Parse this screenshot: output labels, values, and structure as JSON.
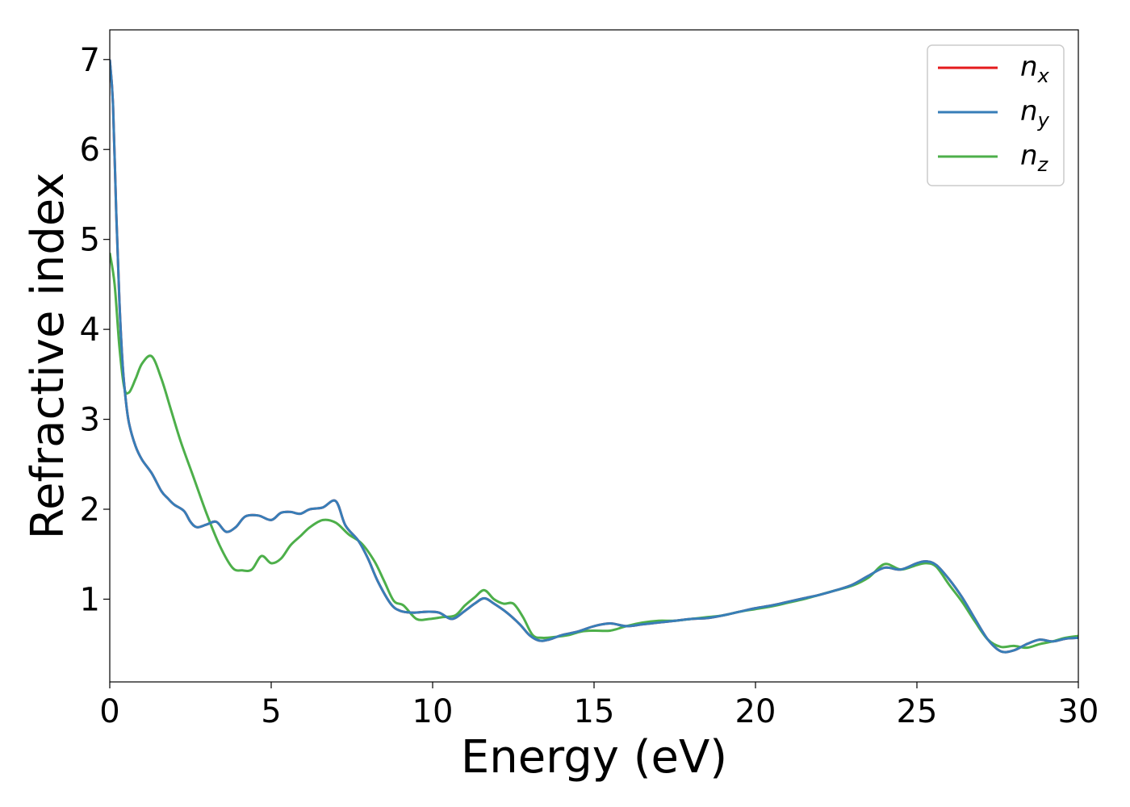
{
  "chart_data": {
    "type": "line",
    "xlabel": "Energy (eV)",
    "ylabel": "Refractive index",
    "xlim": [
      0,
      30
    ],
    "ylim": [
      0.08,
      7.33
    ],
    "xticks": [
      "0",
      "5",
      "10",
      "15",
      "20",
      "25",
      "30"
    ],
    "yticks": [
      "1",
      "2",
      "3",
      "4",
      "5",
      "6",
      "7"
    ],
    "grid": false,
    "legend_position": "top-right",
    "series": [
      {
        "name": "n",
        "subscript": "x",
        "color": "#e41a1c",
        "x": [
          0,
          0.1,
          0.2,
          0.3,
          0.4,
          0.5,
          0.6,
          0.8,
          1.0,
          1.3,
          1.6,
          1.8,
          2.0,
          2.3,
          2.5,
          2.7,
          3.0,
          3.3,
          3.6,
          3.9,
          4.2,
          4.6,
          5.0,
          5.3,
          5.6,
          5.9,
          6.2,
          6.6,
          7.0,
          7.3,
          7.7,
          8.0,
          8.3,
          8.7,
          9.0,
          9.4,
          9.8,
          10.2,
          10.6,
          11.0,
          11.3,
          11.6,
          11.9,
          12.3,
          12.7,
          13.0,
          13.3,
          13.6,
          14.0,
          14.5,
          15.0,
          15.5,
          16.0,
          16.5,
          17.0,
          17.5,
          18.0,
          18.5,
          19.0,
          19.5,
          20.0,
          20.5,
          21.0,
          21.5,
          22.0,
          22.5,
          23.0,
          23.5,
          24.0,
          24.5,
          25.0,
          25.3,
          25.6,
          26.0,
          26.4,
          26.8,
          27.2,
          27.6,
          28.0,
          28.4,
          28.8,
          29.2,
          29.6,
          30.0
        ],
        "y": [
          7.0,
          6.5,
          5.3,
          4.3,
          3.6,
          3.2,
          2.95,
          2.7,
          2.55,
          2.4,
          2.2,
          2.12,
          2.05,
          1.98,
          1.86,
          1.8,
          1.83,
          1.86,
          1.75,
          1.8,
          1.92,
          1.93,
          1.88,
          1.96,
          1.97,
          1.95,
          2.0,
          2.02,
          2.09,
          1.82,
          1.65,
          1.45,
          1.2,
          0.95,
          0.87,
          0.85,
          0.86,
          0.85,
          0.78,
          0.87,
          0.95,
          1.01,
          0.95,
          0.85,
          0.72,
          0.6,
          0.54,
          0.55,
          0.6,
          0.64,
          0.7,
          0.73,
          0.7,
          0.72,
          0.74,
          0.76,
          0.78,
          0.79,
          0.82,
          0.86,
          0.9,
          0.93,
          0.97,
          1.01,
          1.05,
          1.1,
          1.16,
          1.26,
          1.35,
          1.33,
          1.4,
          1.42,
          1.38,
          1.22,
          1.02,
          0.78,
          0.55,
          0.42,
          0.43,
          0.5,
          0.55,
          0.53,
          0.56,
          0.57
        ]
      },
      {
        "name": "n",
        "subscript": "y",
        "color": "#377eb8",
        "x": [
          0,
          0.1,
          0.2,
          0.3,
          0.4,
          0.5,
          0.6,
          0.8,
          1.0,
          1.3,
          1.6,
          1.8,
          2.0,
          2.3,
          2.5,
          2.7,
          3.0,
          3.3,
          3.6,
          3.9,
          4.2,
          4.6,
          5.0,
          5.3,
          5.6,
          5.9,
          6.2,
          6.6,
          7.0,
          7.3,
          7.7,
          8.0,
          8.3,
          8.7,
          9.0,
          9.4,
          9.8,
          10.2,
          10.6,
          11.0,
          11.3,
          11.6,
          11.9,
          12.3,
          12.7,
          13.0,
          13.3,
          13.6,
          14.0,
          14.5,
          15.0,
          15.5,
          16.0,
          16.5,
          17.0,
          17.5,
          18.0,
          18.5,
          19.0,
          19.5,
          20.0,
          20.5,
          21.0,
          21.5,
          22.0,
          22.5,
          23.0,
          23.5,
          24.0,
          24.5,
          25.0,
          25.3,
          25.6,
          26.0,
          26.4,
          26.8,
          27.2,
          27.6,
          28.0,
          28.4,
          28.8,
          29.2,
          29.6,
          30.0
        ],
        "y": [
          7.0,
          6.5,
          5.3,
          4.3,
          3.6,
          3.2,
          2.95,
          2.7,
          2.55,
          2.4,
          2.2,
          2.12,
          2.05,
          1.98,
          1.86,
          1.8,
          1.83,
          1.86,
          1.75,
          1.8,
          1.92,
          1.93,
          1.88,
          1.96,
          1.97,
          1.95,
          2.0,
          2.02,
          2.09,
          1.82,
          1.65,
          1.45,
          1.2,
          0.95,
          0.87,
          0.85,
          0.86,
          0.85,
          0.78,
          0.87,
          0.95,
          1.01,
          0.95,
          0.85,
          0.72,
          0.6,
          0.54,
          0.55,
          0.6,
          0.64,
          0.7,
          0.73,
          0.7,
          0.72,
          0.74,
          0.76,
          0.78,
          0.79,
          0.82,
          0.86,
          0.9,
          0.93,
          0.97,
          1.01,
          1.05,
          1.1,
          1.16,
          1.26,
          1.35,
          1.33,
          1.4,
          1.42,
          1.38,
          1.22,
          1.02,
          0.78,
          0.55,
          0.42,
          0.43,
          0.5,
          0.55,
          0.53,
          0.56,
          0.57
        ]
      },
      {
        "name": "n",
        "subscript": "z",
        "color": "#4daf4a",
        "x": [
          0,
          0.15,
          0.3,
          0.45,
          0.6,
          0.8,
          1.0,
          1.3,
          1.6,
          1.9,
          2.2,
          2.6,
          3.0,
          3.4,
          3.8,
          4.1,
          4.4,
          4.7,
          5.0,
          5.3,
          5.6,
          5.9,
          6.2,
          6.6,
          7.0,
          7.4,
          7.8,
          8.2,
          8.5,
          8.8,
          9.1,
          9.5,
          9.9,
          10.3,
          10.7,
          11.0,
          11.3,
          11.6,
          11.9,
          12.2,
          12.5,
          12.8,
          13.1,
          13.4,
          13.8,
          14.2,
          14.6,
          15.0,
          15.5,
          16.0,
          16.5,
          17.0,
          17.5,
          18.0,
          18.5,
          19.0,
          19.5,
          20.0,
          20.5,
          21.0,
          21.5,
          22.0,
          22.5,
          23.0,
          23.5,
          24.0,
          24.5,
          25.0,
          25.3,
          25.6,
          26.0,
          26.4,
          26.8,
          27.2,
          27.6,
          28.0,
          28.4,
          28.8,
          29.2,
          29.6,
          30.0
        ],
        "y": [
          4.85,
          4.5,
          3.8,
          3.35,
          3.3,
          3.45,
          3.62,
          3.7,
          3.45,
          3.1,
          2.75,
          2.35,
          1.95,
          1.6,
          1.35,
          1.32,
          1.33,
          1.48,
          1.4,
          1.45,
          1.6,
          1.7,
          1.8,
          1.88,
          1.85,
          1.72,
          1.62,
          1.42,
          1.2,
          0.98,
          0.93,
          0.78,
          0.78,
          0.8,
          0.82,
          0.93,
          1.02,
          1.1,
          1.0,
          0.95,
          0.95,
          0.8,
          0.6,
          0.57,
          0.58,
          0.6,
          0.64,
          0.65,
          0.65,
          0.7,
          0.74,
          0.76,
          0.76,
          0.78,
          0.8,
          0.82,
          0.86,
          0.89,
          0.92,
          0.96,
          1.0,
          1.05,
          1.1,
          1.15,
          1.24,
          1.39,
          1.33,
          1.38,
          1.4,
          1.36,
          1.16,
          0.97,
          0.75,
          0.55,
          0.47,
          0.48,
          0.46,
          0.5,
          0.53,
          0.57,
          0.59
        ]
      }
    ]
  }
}
